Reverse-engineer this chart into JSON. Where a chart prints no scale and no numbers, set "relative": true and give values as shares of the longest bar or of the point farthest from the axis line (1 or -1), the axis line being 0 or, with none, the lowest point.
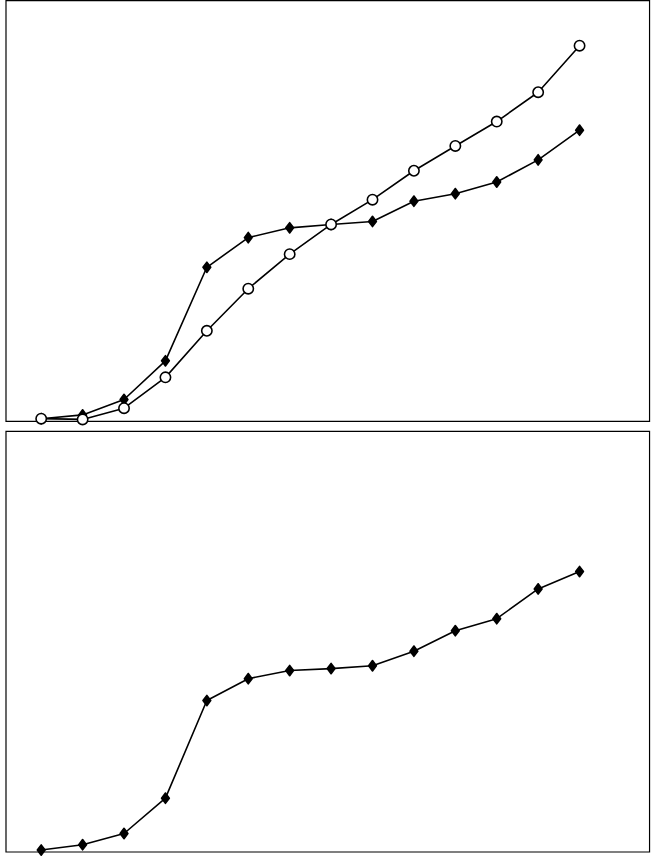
{
  "chart_data": [
    {
      "type": "line",
      "relative": true,
      "categories": [
        null,
        null,
        null,
        null,
        null,
        null,
        null,
        null,
        null,
        null,
        null,
        null,
        null,
        null
      ],
      "series": [
        {
          "color": "#000000",
          "marker": "diamond",
          "values": [
            0.007,
            0.017,
            0.058,
            0.161,
            0.41,
            0.489,
            0.515,
            0.524,
            0.532,
            0.586,
            0.606,
            0.637,
            0.696,
            0.775
          ]
        },
        {
          "color": "#000000",
          "marker": "circle",
          "values": [
            0.007,
            0.005,
            0.035,
            0.117,
            0.241,
            0.353,
            0.445,
            0.524,
            0.59,
            0.667,
            0.733,
            0.798,
            0.876,
            1
          ]
        }
      ]
    },
    {
      "type": "line",
      "relative": true,
      "categories": [
        null,
        null,
        null,
        null,
        null,
        null,
        null,
        null,
        null,
        null,
        null,
        null,
        null,
        null
      ],
      "series": [
        {
          "color": "#000000",
          "marker": "diamond",
          "values": [
            0.007,
            0.026,
            0.066,
            0.192,
            0.54,
            0.618,
            0.647,
            0.654,
            0.664,
            0.716,
            0.789,
            0.832,
            0.938,
            1
          ]
        }
      ]
    }
  ]
}
